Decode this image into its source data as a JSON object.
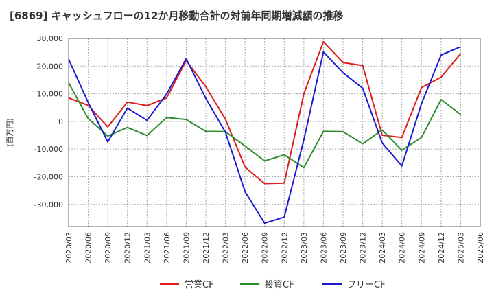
{
  "chart_data": {
    "type": "line",
    "title": "[6869]  キャッシュフローの12か月移動合計の対前年同期増減額の推移",
    "ylabel": "(百万円)",
    "xlabel": "",
    "ylim": [
      -38000,
      30000
    ],
    "yticks": [
      30000,
      20000,
      10000,
      0,
      -10000,
      -20000,
      -30000
    ],
    "ytick_labels": [
      "30,000",
      "20,000",
      "10,000",
      "0",
      "-10,000",
      "-20,000",
      "-30,000"
    ],
    "categories": [
      "2020/03",
      "2020/06",
      "2020/09",
      "2020/12",
      "2021/03",
      "2021/06",
      "2021/09",
      "2021/12",
      "2022/03",
      "2022/06",
      "2022/09",
      "2022/12",
      "2023/03",
      "2023/06",
      "2023/09",
      "2023/12",
      "2024/03",
      "2024/06",
      "2024/09",
      "2024/12",
      "2025/03",
      "2025/06"
    ],
    "grid": true,
    "legend_position": "bottom",
    "series": [
      {
        "name": "営業CF",
        "color": "#dd1c1c",
        "values": [
          8500,
          5800,
          -2000,
          7000,
          5700,
          8500,
          22000,
          12500,
          800,
          -16500,
          -22500,
          -22300,
          10000,
          28800,
          21300,
          20200,
          -5000,
          -5800,
          12200,
          16000,
          24500,
          null
        ]
      },
      {
        "name": "投資CF",
        "color": "#2e8b2e",
        "values": [
          14000,
          1000,
          -5300,
          -2200,
          -5100,
          1400,
          700,
          -3600,
          -3700,
          -8900,
          -14300,
          -12100,
          -16700,
          -3600,
          -3700,
          -8100,
          -3100,
          -10400,
          -5800,
          7900,
          2500,
          null
        ]
      },
      {
        "name": "フリーCF",
        "color": "#1a1acc",
        "values": [
          22500,
          6800,
          -7400,
          4800,
          400,
          9900,
          22700,
          8300,
          -3900,
          -25400,
          -36800,
          -34600,
          -6600,
          25100,
          17600,
          12000,
          -7800,
          -16100,
          6400,
          24000,
          27000,
          null
        ]
      }
    ]
  }
}
